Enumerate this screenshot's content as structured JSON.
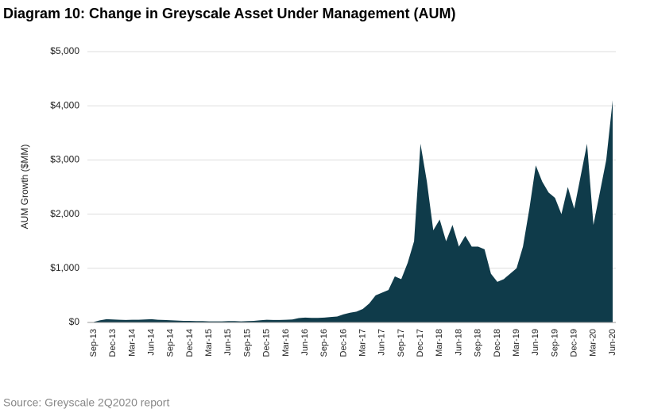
{
  "chart_data": {
    "type": "area",
    "title": "Diagram 10: Change in Greyscale Asset Under Management (AUM)",
    "y_label": "AUM Growth ($MM)",
    "source": "Source: Greyscale 2Q2020 report",
    "color": "#0f3b4a",
    "grid": true,
    "categories": [
      "Sep-13",
      null,
      null,
      "Dec-13",
      null,
      null,
      "Mar-14",
      null,
      null,
      "Jun-14",
      null,
      null,
      "Sep-14",
      null,
      null,
      "Dec-14",
      null,
      null,
      "Mar-15",
      null,
      null,
      "Jun-15",
      null,
      null,
      "Sep-15",
      null,
      null,
      "Dec-15",
      null,
      null,
      "Mar-16",
      null,
      null,
      "Jun-16",
      null,
      null,
      "Sep-16",
      null,
      null,
      "Dec-16",
      null,
      null,
      "Mar-17",
      null,
      null,
      "Jun-17",
      null,
      null,
      "Sep-17",
      null,
      null,
      "Dec-17",
      null,
      null,
      "Mar-18",
      null,
      null,
      "Jun-18",
      null,
      null,
      "Sep-18",
      null,
      null,
      "Dec-18",
      null,
      null,
      "Mar-19",
      null,
      null,
      "Jun-19",
      null,
      null,
      "Sep-19",
      null,
      null,
      "Dec-19",
      null,
      null,
      "Mar-20",
      null,
      null,
      "Jun-20"
    ],
    "values": [
      10,
      40,
      60,
      55,
      50,
      45,
      50,
      50,
      55,
      60,
      50,
      45,
      40,
      35,
      30,
      30,
      25,
      25,
      20,
      20,
      20,
      25,
      25,
      20,
      25,
      30,
      40,
      50,
      45,
      45,
      50,
      55,
      80,
      90,
      85,
      85,
      90,
      100,
      110,
      150,
      180,
      200,
      250,
      350,
      500,
      550,
      600,
      850,
      800,
      1100,
      1500,
      3300,
      2600,
      1700,
      1900,
      1500,
      1800,
      1400,
      1600,
      1400,
      1400,
      1350,
      900,
      750,
      800,
      900,
      1000,
      1400,
      2100,
      2900,
      2600,
      2400,
      2300,
      2000,
      2500,
      2100,
      2700,
      3300,
      1800,
      2400,
      3000,
      4100
    ],
    "ylim": [
      0,
      5000
    ],
    "yticks": [
      {
        "value": 0,
        "label": "$0"
      },
      {
        "value": 1000,
        "label": "$1,000"
      },
      {
        "value": 2000,
        "label": "$2,000"
      },
      {
        "value": 3000,
        "label": "$3,000"
      },
      {
        "value": 4000,
        "label": "$4,000"
      },
      {
        "value": 5000,
        "label": "$5,000"
      }
    ]
  }
}
